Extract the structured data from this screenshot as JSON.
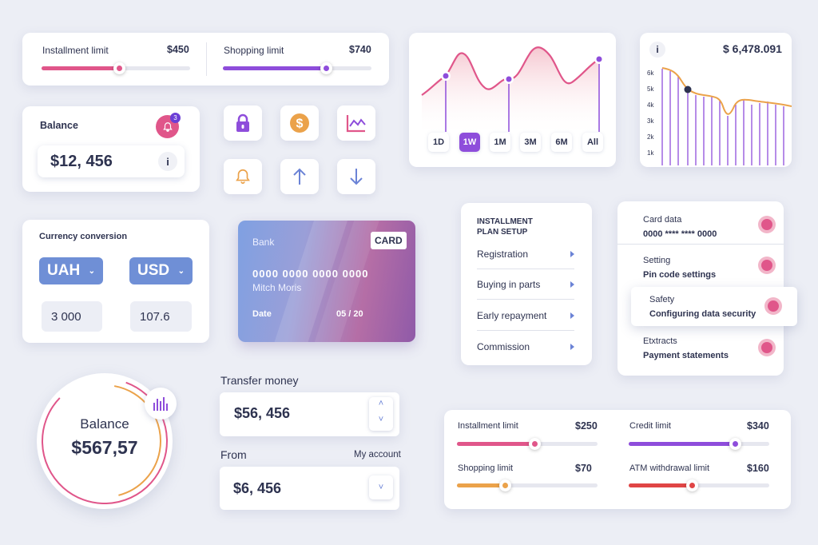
{
  "limits_top": {
    "installment": {
      "label": "Installment limit",
      "value": "$450",
      "level": 0.44,
      "color": "#e0568a"
    },
    "shopping": {
      "label": "Shopping limit",
      "value": "$740",
      "level": 0.72,
      "color": "#8e4ddb"
    }
  },
  "balance_card": {
    "title": "Balance",
    "amount": "$12, 456",
    "badge": "3",
    "info_glyph": "i"
  },
  "icons": [
    "lock-icon",
    "dollar-icon",
    "chart-icon",
    "bell-icon",
    "arrow-up-icon",
    "arrow-down-icon"
  ],
  "area_chart": {
    "tabs": [
      "1D",
      "1W",
      "1M",
      "3M",
      "6M",
      "All"
    ],
    "active_tab": "1W"
  },
  "bar_chart": {
    "value": "$ 6,478.091",
    "info_glyph": "i",
    "y_ticks": [
      "6k",
      "5k",
      "4k",
      "3k",
      "2k",
      "1k"
    ]
  },
  "currency": {
    "title": "Currency conversion",
    "from": "UAH",
    "to": "USD",
    "from_amount": "3 000",
    "to_amount": "107.6"
  },
  "bank_card": {
    "bank": "Bank",
    "badge": "CARD",
    "number": "0000 0000 0000 0000",
    "holder": "Mitch Moris",
    "date_label": "Date",
    "date": "05 / 20"
  },
  "installment_plan": {
    "title_line1": "INSTALLMENT",
    "title_line2": "PLAN SETUP",
    "items": [
      "Registration",
      "Buying in parts",
      "Early repayment",
      "Commission"
    ]
  },
  "settings": [
    {
      "label": "Card data",
      "value": "0000 **** **** 0000"
    },
    {
      "label": "Setting",
      "value": "Pin code settings"
    },
    {
      "label": "Safety",
      "value": "Configuring data security"
    },
    {
      "label": "Etxtracts",
      "value": "Payment statements"
    }
  ],
  "balance_circle": {
    "title": "Balance",
    "amount": "$567,57"
  },
  "transfer": {
    "title": "Transfer money",
    "amount": "$56, 456",
    "from_label": "From",
    "account_label": "My account",
    "from_amount": "$6, 456"
  },
  "limits_bottom": [
    {
      "label": "Installment limit",
      "value": "$250",
      "level": 0.55,
      "color": "#e0568a"
    },
    {
      "label": "Credit limit",
      "value": "$340",
      "level": 0.76,
      "color": "#8e4ddb"
    },
    {
      "label": "Shopping limit",
      "value": "$70",
      "level": 0.34,
      "color": "#eba24a"
    },
    {
      "label": "ATM withdrawal limit",
      "value": "$160",
      "level": 0.45,
      "color": "#e04545"
    }
  ]
}
